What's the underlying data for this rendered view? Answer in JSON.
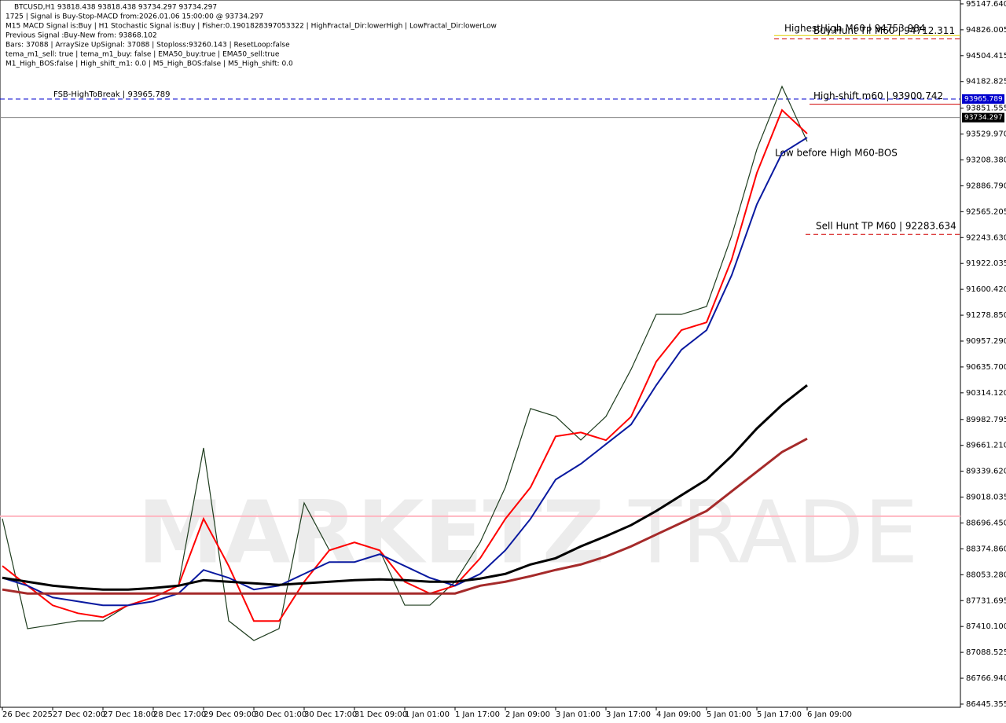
{
  "chart_data": {
    "type": "line",
    "symbol": "BTCUSD,H1",
    "info_lines": [
      "BTCUSD,H1  93818.438 93818.438 93734.297 93734.297",
      "1725 | Signal is Buy-Stop-MACD from:2026.01.06 15:00:00 @ 93734.297",
      "M15 MACD Signal is:Buy | H1 Stochastic Signal is:Buy | Fisher:0.1901828397053322 | HighFractal_Dir:lowerHigh | LowFractal_Dir:lowerLow",
      "Previous Signal :Buy-New from: 93868.102",
      "Bars: 37088 | ArraySize UpSignal: 37088 | Stoploss:93260.143 | ResetLoop:false",
      "tema_m1_sell: true | tema_m1_buy: false | EMA50_buy:true | EMA50_sell:true",
      "M1_High_BOS:false | High_shift_m1: 0.0 | M5_High_BOS:false | M5_High_shift: 0.0"
    ],
    "watermark": [
      "MARKETZ",
      "TRADE"
    ],
    "categories": [
      "26 Dec 2025",
      null,
      "27 Dec 02:00",
      null,
      "27 Dec 18:00",
      null,
      "28 Dec 17:00",
      null,
      "29 Dec 09:00",
      null,
      "30 Dec 01:00",
      null,
      "30 Dec 17:00",
      null,
      "31 Dec 09:00",
      null,
      "1 Jan 01:00",
      null,
      "1 Jan 17:00",
      null,
      "2 Jan 09:00",
      null,
      "3 Jan 01:00",
      null,
      "3 Jan 17:00",
      null,
      "4 Jan 09:00",
      null,
      "5 Jan 01:00",
      null,
      "5 Jan 17:00",
      null,
      "6 Jan 09:00"
    ],
    "series": [
      {
        "color": "#1f3d1f",
        "width": 1.2,
        "values": [
          88750,
          87383,
          87431,
          87480,
          87480,
          87675,
          87773,
          87920,
          89629,
          87480,
          87236,
          87383,
          88945,
          88359,
          88457,
          88359,
          87675,
          87675,
          87968,
          88457,
          89140,
          90118,
          90020,
          89727,
          90020,
          90606,
          91289,
          91289,
          91387,
          92266,
          93340,
          94122,
          93438
        ]
      },
      {
        "color": "#ff0000",
        "width": 2,
        "values": [
          88162,
          87917,
          87673,
          87575,
          87526,
          87673,
          87771,
          87917,
          88748,
          88162,
          87478,
          87478,
          87966,
          88357,
          88455,
          88357,
          87966,
          87820,
          87917,
          88259,
          88748,
          89139,
          89773,
          89822,
          89725,
          90018,
          90702,
          91093,
          91190,
          91972,
          93047,
          93828,
          93535
        ]
      },
      {
        "color": "#0a1aa0",
        "width": 2,
        "values": [
          88015,
          87917,
          87771,
          87722,
          87673,
          87673,
          87722,
          87820,
          88113,
          88015,
          87869,
          87917,
          88064,
          88211,
          88211,
          88308,
          88162,
          88015,
          87917,
          88064,
          88357,
          88748,
          89236,
          89431,
          89676,
          89920,
          90409,
          90849,
          91093,
          91776,
          92656,
          93291,
          93486
        ]
      },
      {
        "color": "#000000",
        "width": 3,
        "values": [
          88015,
          87966,
          87917,
          87888,
          87869,
          87869,
          87888,
          87917,
          87986,
          87966,
          87947,
          87927,
          87947,
          87966,
          87986,
          87995,
          87986,
          87966,
          87966,
          88005,
          88064,
          88181,
          88259,
          88406,
          88533,
          88670,
          88846,
          89041,
          89236,
          89529,
          89871,
          90164,
          90409
        ]
      },
      {
        "color": "#a52a2a",
        "width": 3,
        "values": [
          87869,
          87820,
          87820,
          87820,
          87820,
          87820,
          87820,
          87820,
          87820,
          87820,
          87820,
          87820,
          87820,
          87820,
          87820,
          87820,
          87820,
          87820,
          87820,
          87917,
          87966,
          88035,
          88113,
          88181,
          88279,
          88406,
          88553,
          88699,
          88846,
          89090,
          89334,
          89578,
          89744
        ]
      }
    ],
    "levels": [
      {
        "value": 93965.789,
        "label": "FSB-HighToBreak | 93965.789",
        "color": "#0000cd",
        "dash": true
      },
      {
        "value": 93734.297,
        "color": "#8a8a8a",
        "dash": false
      },
      {
        "value": 88780,
        "color": "#ffb6c1",
        "dash": false
      },
      {
        "value": 94712.311,
        "label": "Buy Hunt TP M60 | 94712.311",
        "color": "#d00000",
        "dash": true
      },
      {
        "value": 92283.634,
        "label": "Sell Hunt TP M60 | 92283.634",
        "color": "#d00000",
        "dash": true
      },
      {
        "value": 93900.742,
        "label": "High-shift m60 | 93900.742",
        "color": "#d00000",
        "dash": false
      },
      {
        "value": 94753.984,
        "label": "HighestHigh   M60 | 94753.984",
        "color": "#e0d000",
        "dash": false
      }
    ],
    "annotations": [
      "Low before High   M60-BOS"
    ],
    "price_boxes": [
      {
        "value": 93965.789,
        "color": "#0000cd"
      },
      {
        "value": 93734.297,
        "color": "#000000"
      }
    ],
    "ylim": [
      86406,
      95196
    ],
    "yticks": [
      {
        "value": 95147.64,
        "label": "95147.640"
      },
      94826.005,
      94504.415,
      94182.825,
      93851.555,
      {
        "value": 93529.97,
        "label": "93529.970"
      },
      {
        "value": 93208.38,
        "label": "93208.380"
      },
      {
        "value": 92886.79,
        "label": "92886.790"
      },
      92565.205,
      {
        "value": 92243.63,
        "label": "92243.630"
      },
      91922.035,
      {
        "value": 91600.42,
        "label": "91600.420"
      },
      {
        "value": 91278.85,
        "label": "91278.850"
      },
      {
        "value": 90957.29,
        "label": "90957.290"
      },
      {
        "value": 90635.7,
        "label": "90635.700"
      },
      {
        "value": 90314.12,
        "label": "90314.120"
      },
      89982.795,
      {
        "value": 89661.21,
        "label": "89661.210"
      },
      {
        "value": 89339.62,
        "label": "89339.620"
      },
      89018.035,
      {
        "value": 88696.45,
        "label": "88696.450"
      },
      {
        "value": 88374.86,
        "label": "88374.860"
      },
      {
        "value": 88053.28,
        "label": "88053.280"
      },
      87731.695,
      {
        "value": 87410.1,
        "label": "87410.100"
      },
      87088.525,
      {
        "value": 86766.94,
        "label": "86766.940"
      },
      86445.355
    ]
  }
}
